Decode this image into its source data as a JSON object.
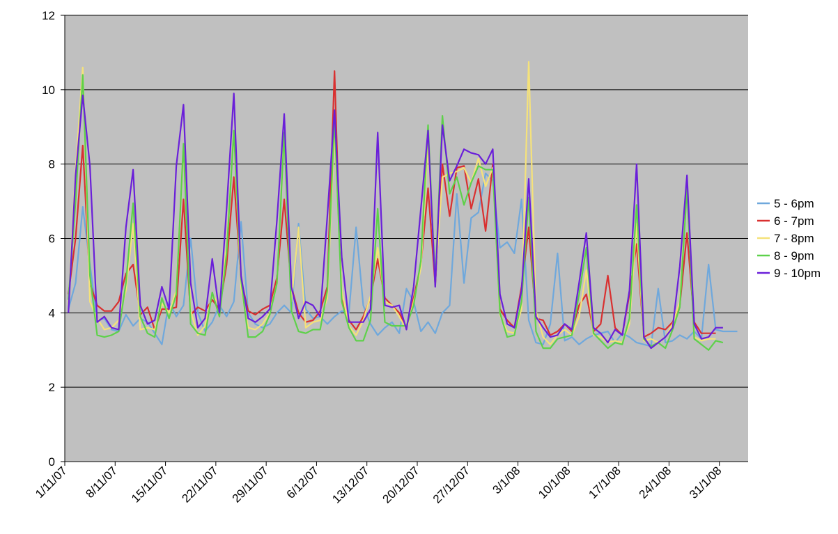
{
  "chart_data": {
    "type": "line",
    "title": "",
    "xlabel": "",
    "ylabel": "",
    "ylim": [
      0,
      12
    ],
    "y_ticks": [
      "0",
      "2",
      "4",
      "6",
      "8",
      "10",
      "12"
    ],
    "x_tick_labels": [
      "1/11/07",
      "8/11/07",
      "15/11/07",
      "22/11/07",
      "29/11/07",
      "6/12/07",
      "13/12/07",
      "20/12/07",
      "27/12/07",
      "3/1/08",
      "10/1/08",
      "17/1/08",
      "24/1/08",
      "31/1/08"
    ],
    "grid": true,
    "legend_position": "right",
    "colors": {
      "plot_background": "#c0c0c0",
      "gridline": "#000000"
    },
    "series": [
      {
        "name": "5 - 6pm",
        "color": "#6fa8dc",
        "values": [
          4.1,
          4.8,
          6.85,
          5.3,
          3.8,
          3.85,
          3.55,
          3.5,
          3.95,
          3.65,
          3.85,
          3.75,
          3.45,
          3.15,
          4.3,
          3.9,
          4.2,
          6.0,
          4.0,
          3.5,
          3.75,
          4.2,
          3.9,
          4.3,
          6.45,
          4.0,
          3.7,
          3.6,
          3.7,
          4.0,
          4.2,
          4.0,
          6.4,
          4.1,
          3.85,
          3.9,
          3.7,
          3.9,
          4.05,
          4.0,
          6.3,
          4.2,
          3.7,
          3.4,
          3.6,
          3.75,
          3.45,
          4.65,
          4.3,
          3.5,
          3.75,
          3.45,
          4.0,
          4.2,
          7.2,
          4.8,
          6.55,
          6.7,
          7.75,
          7.55,
          5.75,
          5.9,
          5.6,
          7.05,
          3.8,
          3.2,
          3.15,
          3.7,
          5.6,
          3.25,
          3.35,
          3.15,
          3.3,
          3.4,
          3.45,
          3.5,
          3.2,
          3.45,
          3.35,
          3.2,
          3.15,
          3.1,
          4.65,
          3.2,
          3.25,
          3.4,
          3.3,
          3.5,
          3.3,
          5.3,
          3.55,
          3.5,
          3.5,
          3.5
        ]
      },
      {
        "name": "6 - 7pm",
        "color": "#d93030",
        "values": [
          4.5,
          6.0,
          8.5,
          4.8,
          4.2,
          4.05,
          4.05,
          4.3,
          5.05,
          5.3,
          3.95,
          4.15,
          3.55,
          4.1,
          4.1,
          4.15,
          7.05,
          3.95,
          4.15,
          4.05,
          4.35,
          4.1,
          5.3,
          7.65,
          4.9,
          4.05,
          3.95,
          4.1,
          4.2,
          4.95,
          7.05,
          4.7,
          4.0,
          3.75,
          3.8,
          4.05,
          4.7,
          10.5,
          4.35,
          3.8,
          3.55,
          3.9,
          4.4,
          5.45,
          4.4,
          4.2,
          4.0,
          3.6,
          4.4,
          5.3,
          7.35,
          4.75,
          8.0,
          6.6,
          7.9,
          7.95,
          6.8,
          7.6,
          6.2,
          8.0,
          4.1,
          3.8,
          3.6,
          4.7,
          6.3,
          3.85,
          3.8,
          3.4,
          3.5,
          3.7,
          3.5,
          4.2,
          4.5,
          3.5,
          3.7,
          5.0,
          3.6,
          3.4,
          4.5,
          5.85,
          3.35,
          3.45,
          3.6,
          3.55,
          3.75,
          4.2,
          6.15,
          3.75,
          3.45,
          3.45,
          3.45
        ]
      },
      {
        "name": "7 - 8pm",
        "color": "#f5e27a",
        "values": [
          4.2,
          7.8,
          10.6,
          4.3,
          3.85,
          3.55,
          3.6,
          3.8,
          4.6,
          6.4,
          3.55,
          3.6,
          3.55,
          4.25,
          4.0,
          4.6,
          8.45,
          4.05,
          3.4,
          3.65,
          4.5,
          4.2,
          5.8,
          8.85,
          4.7,
          3.6,
          3.55,
          3.7,
          4.0,
          4.8,
          8.85,
          4.3,
          6.3,
          3.6,
          3.75,
          3.8,
          4.4,
          8.9,
          4.6,
          3.65,
          3.4,
          3.8,
          4.45,
          5.75,
          4.3,
          4.2,
          3.9,
          3.55,
          4.3,
          5.2,
          8.6,
          4.85,
          7.65,
          7.75,
          7.8,
          7.9,
          7.5,
          8.15,
          7.4,
          7.9,
          3.95,
          3.5,
          3.45,
          4.1,
          10.75,
          4.05,
          3.35,
          3.15,
          3.4,
          3.55,
          3.4,
          3.9,
          5.15,
          3.4,
          3.35,
          3.2,
          3.25,
          3.2,
          3.7,
          6.4,
          3.25,
          3.3,
          3.2,
          3.35,
          3.7,
          4.3,
          7.4,
          3.35,
          3.25,
          3.3,
          3.3
        ]
      },
      {
        "name": "8 - 9pm",
        "color": "#5ed14a",
        "values": [
          4.35,
          7.0,
          10.4,
          5.0,
          3.4,
          3.35,
          3.4,
          3.5,
          4.8,
          6.95,
          3.9,
          3.45,
          3.35,
          4.4,
          3.85,
          4.5,
          8.55,
          3.7,
          3.45,
          3.4,
          4.55,
          3.9,
          5.6,
          8.9,
          4.9,
          3.35,
          3.35,
          3.5,
          3.95,
          4.8,
          8.85,
          4.05,
          3.5,
          3.45,
          3.55,
          3.55,
          4.6,
          9.25,
          4.3,
          3.6,
          3.25,
          3.25,
          3.8,
          6.8,
          3.75,
          3.65,
          3.65,
          3.65,
          4.2,
          5.4,
          9.05,
          4.85,
          9.3,
          7.2,
          7.65,
          6.9,
          7.5,
          7.95,
          7.85,
          7.85,
          4.0,
          3.35,
          3.4,
          4.3,
          7.1,
          3.5,
          3.05,
          3.05,
          3.3,
          3.35,
          3.4,
          4.5,
          5.75,
          3.45,
          3.25,
          3.05,
          3.2,
          3.15,
          3.85,
          6.9,
          3.3,
          3.1,
          3.2,
          3.05,
          3.55,
          4.15,
          7.35,
          3.3,
          3.15,
          3.0,
          3.25,
          3.2
        ]
      },
      {
        "name": "9 - 10pm",
        "color": "#6a1fd9",
        "values": [
          4.0,
          7.7,
          9.85,
          7.95,
          3.75,
          3.9,
          3.6,
          3.55,
          6.3,
          7.85,
          4.2,
          3.7,
          3.8,
          4.7,
          4.1,
          7.95,
          9.6,
          4.8,
          3.6,
          3.85,
          5.45,
          4.0,
          6.8,
          9.9,
          5.0,
          3.85,
          3.75,
          3.9,
          4.1,
          6.5,
          9.35,
          4.7,
          3.85,
          4.3,
          4.2,
          3.9,
          6.6,
          9.45,
          5.5,
          3.75,
          3.75,
          3.75,
          4.1,
          8.85,
          4.2,
          4.15,
          4.2,
          3.55,
          4.7,
          6.8,
          8.9,
          4.7,
          9.05,
          7.55,
          7.95,
          8.4,
          8.3,
          8.25,
          8.0,
          8.4,
          4.5,
          3.7,
          3.6,
          4.6,
          7.6,
          3.9,
          3.6,
          3.35,
          3.4,
          3.7,
          3.55,
          4.8,
          6.15,
          3.6,
          3.45,
          3.2,
          3.55,
          3.4,
          4.6,
          8.0,
          3.35,
          3.05,
          3.2,
          3.35,
          3.6,
          5.25,
          7.7,
          3.7,
          3.3,
          3.35,
          3.6,
          3.6
        ]
      }
    ]
  }
}
